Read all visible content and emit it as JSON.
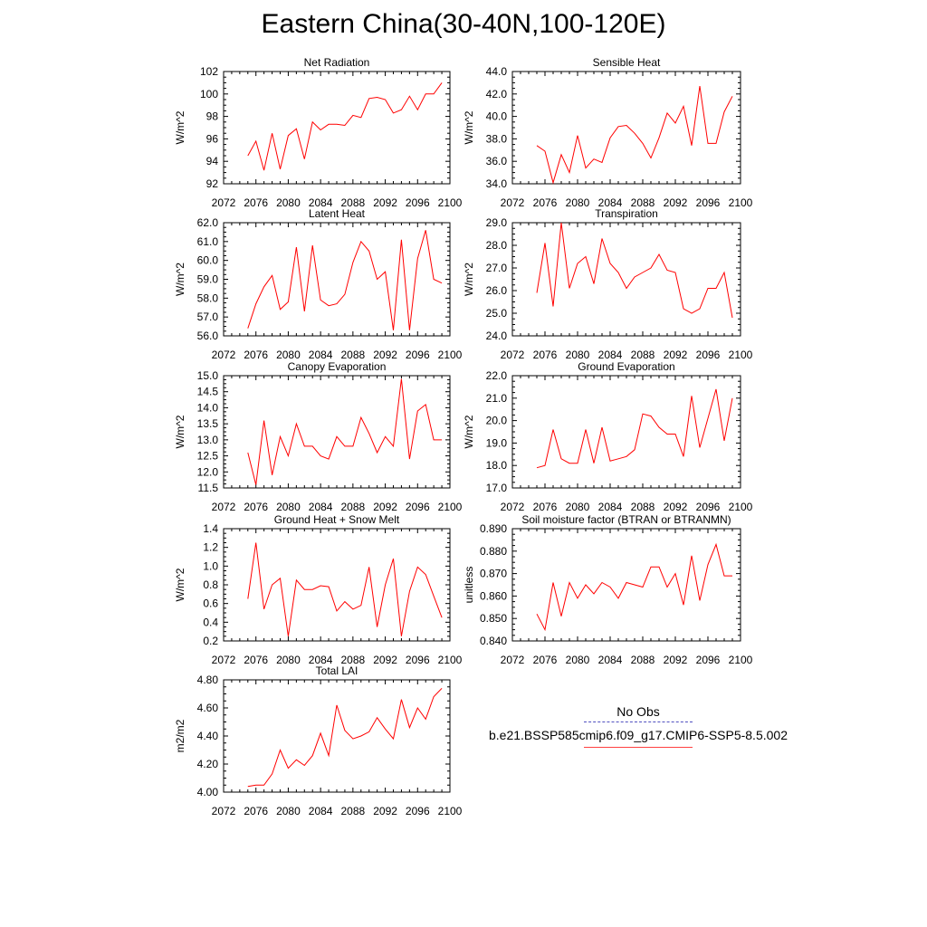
{
  "title": "Eastern China(30-40N,100-120E)",
  "legend": {
    "obs_label": "No Obs",
    "obs_color": "#5050c0",
    "model_label": "b.e21.BSSP585cmip6.f09_g17.CMIP6-SSP5-8.5.002",
    "model_color": "#ff0000"
  },
  "chart_data": [
    {
      "type": "line",
      "title": "Net Radiation",
      "ylabel": "W/m^2",
      "xlim": [
        2072,
        2100
      ],
      "xticks": [
        "2072",
        "2076",
        "2080",
        "2084",
        "2088",
        "2092",
        "2096",
        "2100"
      ],
      "ylim": [
        92,
        102
      ],
      "yticks": [
        "92",
        "94",
        "96",
        "98",
        "100",
        "102"
      ],
      "x": [
        2075,
        2076,
        2077,
        2078,
        2079,
        2080,
        2081,
        2082,
        2083,
        2084,
        2085,
        2086,
        2087,
        2088,
        2089,
        2090,
        2091,
        2092,
        2093,
        2094,
        2095,
        2096,
        2097,
        2098,
        2099
      ],
      "series": [
        {
          "values": [
            94.5,
            95.8,
            93.2,
            96.5,
            93.3,
            96.3,
            96.9,
            94.2,
            97.5,
            96.8,
            97.3,
            97.3,
            97.2,
            98.1,
            97.9,
            99.6,
            99.7,
            99.5,
            98.3,
            98.6,
            99.8,
            98.6,
            100.0,
            100.0,
            101.0
          ]
        }
      ]
    },
    {
      "type": "line",
      "title": "Sensible Heat",
      "ylabel": "W/m^2",
      "xlim": [
        2072,
        2100
      ],
      "xticks": [
        "2072",
        "2076",
        "2080",
        "2084",
        "2088",
        "2092",
        "2096",
        "2100"
      ],
      "ylim": [
        34.0,
        44.0
      ],
      "yticks": [
        "34.0",
        "36.0",
        "38.0",
        "40.0",
        "42.0",
        "44.0"
      ],
      "x": [
        2075,
        2076,
        2077,
        2078,
        2079,
        2080,
        2081,
        2082,
        2083,
        2084,
        2085,
        2086,
        2087,
        2088,
        2089,
        2090,
        2091,
        2092,
        2093,
        2094,
        2095,
        2096,
        2097,
        2098,
        2099
      ],
      "series": [
        {
          "values": [
            37.4,
            36.9,
            34.1,
            36.6,
            35.0,
            38.3,
            35.4,
            36.2,
            35.9,
            38.1,
            39.1,
            39.2,
            38.5,
            37.6,
            36.3,
            38.1,
            40.3,
            39.4,
            40.9,
            37.4,
            42.7,
            37.6,
            37.6,
            40.4,
            41.8
          ]
        }
      ]
    },
    {
      "type": "line",
      "title": "Latent Heat",
      "ylabel": "W/m^2",
      "xlim": [
        2072,
        2100
      ],
      "xticks": [
        "2072",
        "2076",
        "2080",
        "2084",
        "2088",
        "2092",
        "2096",
        "2100"
      ],
      "ylim": [
        56.0,
        62.0
      ],
      "yticks": [
        "56.0",
        "57.0",
        "58.0",
        "59.0",
        "60.0",
        "61.0",
        "62.0"
      ],
      "x": [
        2075,
        2076,
        2077,
        2078,
        2079,
        2080,
        2081,
        2082,
        2083,
        2084,
        2085,
        2086,
        2087,
        2088,
        2089,
        2090,
        2091,
        2092,
        2093,
        2094,
        2095,
        2096,
        2097,
        2098,
        2099
      ],
      "series": [
        {
          "values": [
            56.4,
            57.7,
            58.6,
            59.2,
            57.4,
            57.8,
            60.7,
            57.3,
            60.8,
            57.9,
            57.6,
            57.7,
            58.2,
            59.9,
            61.0,
            60.5,
            59.0,
            59.4,
            56.3,
            61.1,
            56.3,
            60.1,
            61.6,
            59.0,
            58.8
          ]
        }
      ]
    },
    {
      "type": "line",
      "title": "Transpiration",
      "ylabel": "W/m^2",
      "xlim": [
        2072,
        2100
      ],
      "xticks": [
        "2072",
        "2076",
        "2080",
        "2084",
        "2088",
        "2092",
        "2096",
        "2100"
      ],
      "ylim": [
        24.0,
        29.0
      ],
      "yticks": [
        "24.0",
        "25.0",
        "26.0",
        "27.0",
        "28.0",
        "29.0"
      ],
      "x": [
        2075,
        2076,
        2077,
        2078,
        2079,
        2080,
        2081,
        2082,
        2083,
        2084,
        2085,
        2086,
        2087,
        2088,
        2089,
        2090,
        2091,
        2092,
        2093,
        2094,
        2095,
        2096,
        2097,
        2098,
        2099
      ],
      "series": [
        {
          "values": [
            25.9,
            28.1,
            25.3,
            29.0,
            26.1,
            27.2,
            27.5,
            26.3,
            28.3,
            27.2,
            26.8,
            26.1,
            26.6,
            26.8,
            27.0,
            27.6,
            26.9,
            26.8,
            25.2,
            25.0,
            25.2,
            26.1,
            26.1,
            26.8,
            24.8
          ]
        }
      ]
    },
    {
      "type": "line",
      "title": "Canopy Evaporation",
      "ylabel": "W/m^2",
      "xlim": [
        2072,
        2100
      ],
      "xticks": [
        "2072",
        "2076",
        "2080",
        "2084",
        "2088",
        "2092",
        "2096",
        "2100"
      ],
      "ylim": [
        11.5,
        15.0
      ],
      "yticks": [
        "11.5",
        "12.0",
        "12.5",
        "13.0",
        "13.5",
        "14.0",
        "14.5",
        "15.0"
      ],
      "x": [
        2075,
        2076,
        2077,
        2078,
        2079,
        2080,
        2081,
        2082,
        2083,
        2084,
        2085,
        2086,
        2087,
        2088,
        2089,
        2090,
        2091,
        2092,
        2093,
        2094,
        2095,
        2096,
        2097,
        2098,
        2099
      ],
      "series": [
        {
          "values": [
            12.6,
            11.6,
            13.6,
            11.9,
            13.1,
            12.5,
            13.5,
            12.8,
            12.8,
            12.5,
            12.4,
            13.1,
            12.8,
            12.8,
            13.7,
            13.2,
            12.6,
            13.1,
            12.8,
            14.9,
            12.4,
            13.9,
            14.1,
            13.0,
            13.0
          ]
        }
      ]
    },
    {
      "type": "line",
      "title": "Ground Evaporation",
      "ylabel": "W/m^2",
      "xlim": [
        2072,
        2100
      ],
      "xticks": [
        "2072",
        "2076",
        "2080",
        "2084",
        "2088",
        "2092",
        "2096",
        "2100"
      ],
      "ylim": [
        17.0,
        22.0
      ],
      "yticks": [
        "17.0",
        "18.0",
        "19.0",
        "20.0",
        "21.0",
        "22.0"
      ],
      "x": [
        2075,
        2076,
        2077,
        2078,
        2079,
        2080,
        2081,
        2082,
        2083,
        2084,
        2085,
        2086,
        2087,
        2088,
        2089,
        2090,
        2091,
        2092,
        2093,
        2094,
        2095,
        2096,
        2097,
        2098,
        2099
      ],
      "series": [
        {
          "values": [
            17.9,
            18.0,
            19.6,
            18.3,
            18.1,
            18.1,
            19.6,
            18.1,
            19.7,
            18.2,
            18.3,
            18.4,
            18.7,
            20.3,
            20.2,
            19.7,
            19.4,
            19.4,
            18.4,
            21.1,
            18.8,
            20.1,
            21.4,
            19.1,
            21.0
          ]
        }
      ]
    },
    {
      "type": "line",
      "title": "Ground Heat + Snow Melt",
      "ylabel": "W/m^2",
      "xlim": [
        2072,
        2100
      ],
      "xticks": [
        "2072",
        "2076",
        "2080",
        "2084",
        "2088",
        "2092",
        "2096",
        "2100"
      ],
      "ylim": [
        0.2,
        1.4
      ],
      "yticks": [
        "0.2",
        "0.4",
        "0.6",
        "0.8",
        "1.0",
        "1.2",
        "1.4"
      ],
      "x": [
        2075,
        2076,
        2077,
        2078,
        2079,
        2080,
        2081,
        2082,
        2083,
        2084,
        2085,
        2086,
        2087,
        2088,
        2089,
        2090,
        2091,
        2092,
        2093,
        2094,
        2095,
        2096,
        2097,
        2098,
        2099
      ],
      "series": [
        {
          "values": [
            0.65,
            1.25,
            0.54,
            0.8,
            0.87,
            0.25,
            0.85,
            0.75,
            0.75,
            0.79,
            0.78,
            0.52,
            0.62,
            0.54,
            0.58,
            0.99,
            0.35,
            0.8,
            1.08,
            0.25,
            0.73,
            0.99,
            0.91,
            0.68,
            0.45
          ]
        }
      ]
    },
    {
      "type": "line",
      "title": "Soil moisture factor (BTRAN or BTRANMN)",
      "ylabel": "unitless",
      "xlim": [
        2072,
        2100
      ],
      "xticks": [
        "2072",
        "2076",
        "2080",
        "2084",
        "2088",
        "2092",
        "2096",
        "2100"
      ],
      "ylim": [
        0.84,
        0.89
      ],
      "yticks": [
        "0.840",
        "0.850",
        "0.860",
        "0.870",
        "0.880",
        "0.890"
      ],
      "x": [
        2075,
        2076,
        2077,
        2078,
        2079,
        2080,
        2081,
        2082,
        2083,
        2084,
        2085,
        2086,
        2087,
        2088,
        2089,
        2090,
        2091,
        2092,
        2093,
        2094,
        2095,
        2096,
        2097,
        2098,
        2099
      ],
      "series": [
        {
          "values": [
            0.852,
            0.845,
            0.866,
            0.851,
            0.866,
            0.859,
            0.865,
            0.861,
            0.866,
            0.864,
            0.859,
            0.866,
            0.865,
            0.864,
            0.873,
            0.873,
            0.864,
            0.87,
            0.856,
            0.878,
            0.858,
            0.874,
            0.883,
            0.869,
            0.869
          ]
        }
      ]
    },
    {
      "type": "line",
      "title": "Total LAI",
      "ylabel": "m2/m2",
      "xlim": [
        2072,
        2100
      ],
      "xticks": [
        "2072",
        "2076",
        "2080",
        "2084",
        "2088",
        "2092",
        "2096",
        "2100"
      ],
      "ylim": [
        4.0,
        4.8
      ],
      "yticks": [
        "4.00",
        "4.20",
        "4.40",
        "4.60",
        "4.80"
      ],
      "x": [
        2075,
        2076,
        2077,
        2078,
        2079,
        2080,
        2081,
        2082,
        2083,
        2084,
        2085,
        2086,
        2087,
        2088,
        2089,
        2090,
        2091,
        2092,
        2093,
        2094,
        2095,
        2096,
        2097,
        2098,
        2099
      ],
      "series": [
        {
          "values": [
            4.04,
            4.05,
            4.05,
            4.13,
            4.3,
            4.17,
            4.23,
            4.19,
            4.26,
            4.42,
            4.26,
            4.62,
            4.44,
            4.38,
            4.4,
            4.43,
            4.53,
            4.45,
            4.38,
            4.66,
            4.46,
            4.6,
            4.52,
            4.68,
            4.74
          ]
        }
      ]
    }
  ]
}
